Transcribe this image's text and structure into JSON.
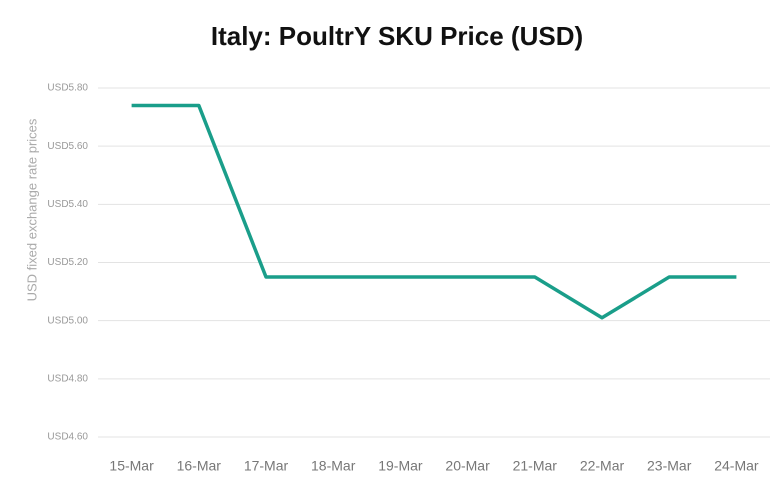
{
  "chart_data": {
    "type": "line",
    "title": "Italy: PoultrY SKU Price (USD)",
    "y_label": "USD fixed exchange rate prices",
    "categories": [
      "15-Mar",
      "16-Mar",
      "17-Mar",
      "18-Mar",
      "19-Mar",
      "20-Mar",
      "21-Mar",
      "22-Mar",
      "23-Mar",
      "24-Mar"
    ],
    "values": [
      5.74,
      5.74,
      5.15,
      5.15,
      5.15,
      5.15,
      5.15,
      5.01,
      5.15,
      5.15
    ],
    "color": "#1a9e8a",
    "ylim": [
      4.6,
      5.8
    ],
    "yticks": [
      {
        "value": 4.6,
        "label": "USD4.60"
      },
      {
        "value": 4.8,
        "label": "USD4.80"
      },
      {
        "value": 5.0,
        "label": "USD5.00"
      },
      {
        "value": 5.2,
        "label": "USD5.20"
      },
      {
        "value": 5.4,
        "label": "USD5.40"
      },
      {
        "value": 5.6,
        "label": "USD5.60"
      },
      {
        "value": 5.8,
        "label": "USD5.80"
      }
    ],
    "grid": true
  }
}
